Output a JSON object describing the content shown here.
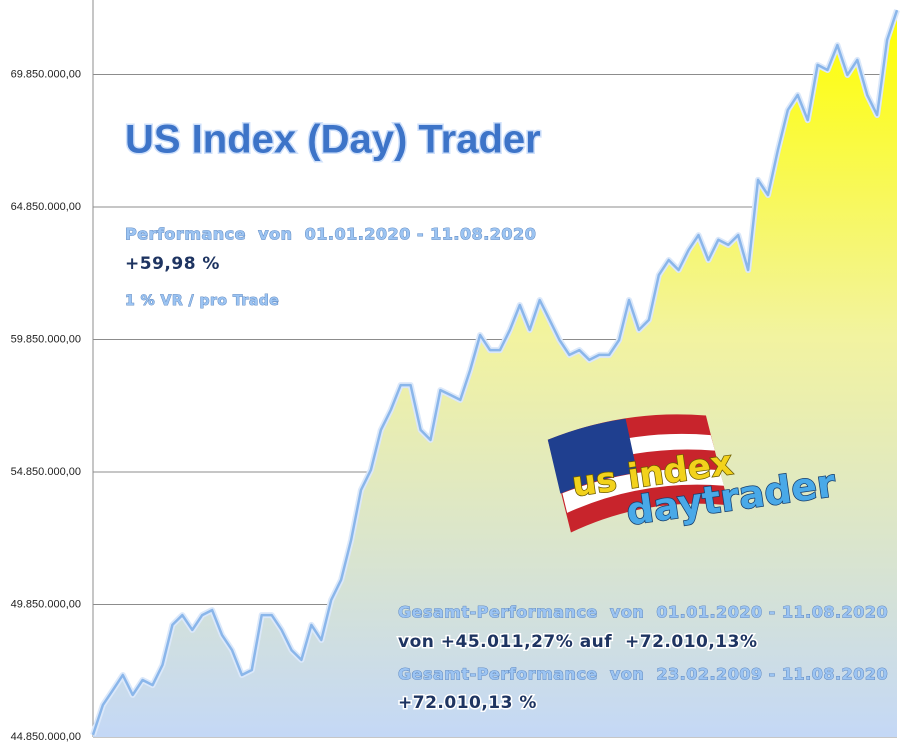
{
  "chart_data": {
    "type": "area",
    "title": "US Index (Day) Trader",
    "annotations": [
      "Performance  von  01.01.2020 - 11.08.2020",
      "+59,98 %",
      "1 % VR / pro Trade",
      "Gesamt-Performance  von  01.01.2020 - 11.08.2020",
      "von +45.011,27% auf  +72.010,13%",
      "Gesamt-Performance  von  23.02.2009 - 11.08.2020",
      "+72.010,13 %"
    ],
    "logo": [
      "us index",
      "daytrader"
    ],
    "values": [
      44930000,
      46060000,
      46620000,
      47190000,
      46440000,
      47000000,
      46810000,
      47570000,
      49080000,
      49450000,
      48890000,
      49450000,
      49640000,
      48700000,
      48130000,
      47190000,
      47380000,
      49450000,
      49450000,
      48890000,
      48130000,
      47760000,
      49080000,
      48510000,
      50020000,
      50780000,
      52280000,
      54170000,
      54930000,
      56440000,
      57190000,
      58130000,
      58130000,
      56440000,
      56060000,
      57940000,
      57760000,
      57570000,
      58700000,
      60020000,
      59450000,
      59450000,
      60210000,
      61150000,
      60210000,
      61340000,
      60590000,
      59830000,
      59270000,
      59450000,
      59080000,
      59270000,
      59270000,
      59830000,
      61340000,
      60210000,
      60590000,
      62280000,
      62850000,
      62470000,
      63230000,
      63790000,
      62850000,
      63610000,
      63420000,
      63790000,
      62470000,
      65870000,
      65300000,
      67000000,
      68510000,
      69080000,
      68130000,
      70210000,
      70020000,
      70960000,
      69830000,
      70400000,
      69080000,
      68320000,
      71150000,
      72280000
    ],
    "ylim": [
      44850000,
      72660000
    ],
    "yticks": [
      {
        "value": 44850000,
        "label": "44.850.000,00"
      },
      {
        "value": 49850000,
        "label": "49.850.000,00"
      },
      {
        "value": 54850000,
        "label": "54.850.000,00"
      },
      {
        "value": 59850000,
        "label": "59.850.000,00"
      },
      {
        "value": 64850000,
        "label": "64.850.000,00"
      },
      {
        "value": 69850000,
        "label": "69.850.000,00"
      }
    ],
    "grid": true,
    "color": "#8ab6ea"
  }
}
